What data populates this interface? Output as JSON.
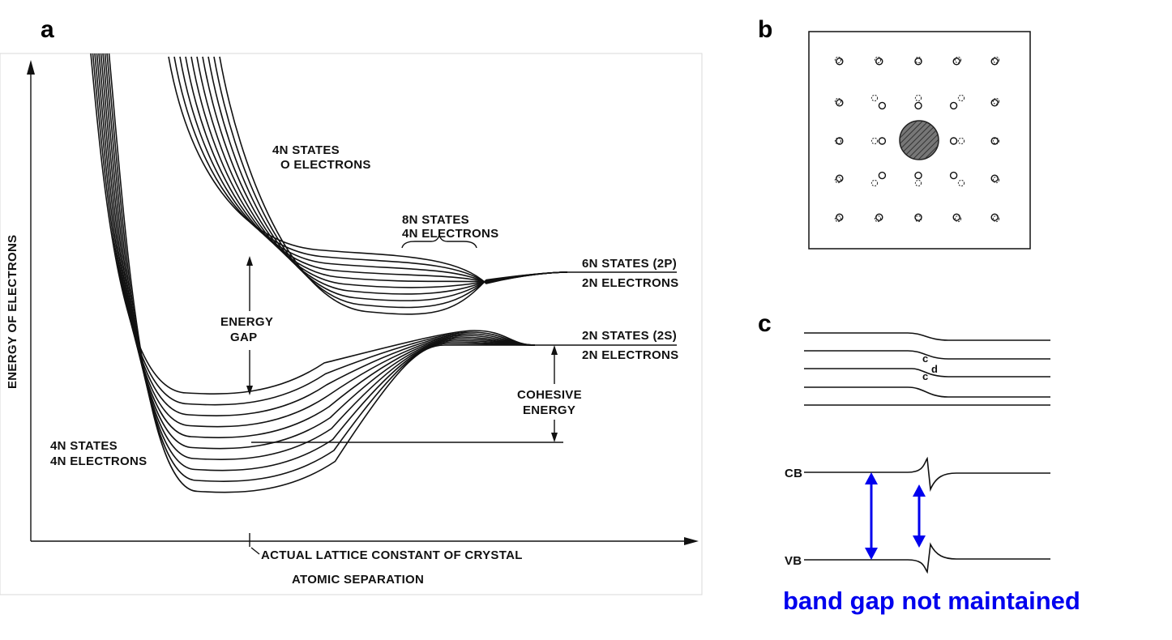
{
  "panels": {
    "a": "a",
    "b": "b",
    "c": "c"
  },
  "panel_a": {
    "y_axis_label": "ENERGY OF ELECTRONS",
    "x_axis_label": "ATOMIC SEPARATION",
    "lattice_label": "ACTUAL LATTICE CONSTANT OF CRYSTAL",
    "upper_band": {
      "line1": "4N STATES",
      "line2": "O ELECTRONS"
    },
    "bracket": {
      "line1": "8N STATES",
      "line2": "4N ELECTRONS"
    },
    "level_2p": {
      "line1": "6N STATES (2P)",
      "line2": "2N ELECTRONS"
    },
    "level_2s": {
      "line1": "2N STATES (2S)",
      "line2": "2N ELECTRONS"
    },
    "gap": {
      "line1": "ENERGY",
      "line2": "GAP"
    },
    "cohesive": {
      "line1": "COHESIVE",
      "line2": "ENERGY"
    },
    "lower_band": {
      "line1": "4N STATES",
      "line2": "4N ELECTRONS"
    }
  },
  "panel_c": {
    "cb_label": "CB",
    "vb_label": "VB",
    "c_upper": "c",
    "c_lower": "c",
    "d_label": "d",
    "caption": "band gap not maintained",
    "arrow_color": "#0000ee"
  }
}
